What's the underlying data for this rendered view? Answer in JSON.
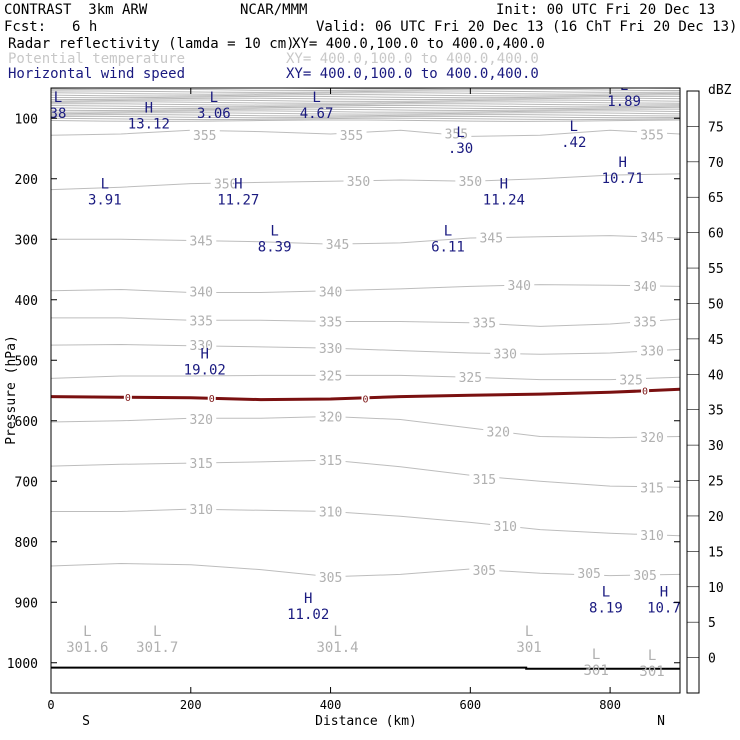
{
  "header": {
    "title_left": "CONTRAST  3km ARW",
    "title_center": "NCAR/MMM",
    "init": "Init: 00 UTC Fri 20 Dec 13",
    "fcst_label": "Fcst:",
    "fcst_value": "6 h",
    "valid": "Valid: 06 UTC Fri 20 Dec 13 (16 ChT Fri 20 Dec 13)",
    "fields": [
      {
        "name": "Radar reflectivity (lamda = 10 cm)",
        "xy": "XY= 400.0,100.0 to 400.0,400.0"
      },
      {
        "name": "Potential temperature",
        "xy": "XY= 400.0,100.0 to 400.0,400.0"
      },
      {
        "name": "Horizontal wind speed",
        "xy": "XY= 400.0,100.0 to 400.0,400.0"
      }
    ]
  },
  "axes": {
    "ylabel": "Pressure (hPa)",
    "xlabel": "Distance (km)",
    "y_ticks": [
      100,
      200,
      300,
      400,
      500,
      600,
      700,
      800,
      900,
      1000
    ],
    "x_ticks": [
      0,
      200,
      400,
      600,
      800
    ],
    "x_start_label": "S",
    "x_end_label": "N"
  },
  "colorbar": {
    "unit": "dBZ",
    "labels": [
      75,
      70,
      65,
      60,
      55,
      50,
      45,
      40,
      35,
      30,
      25,
      20,
      15,
      10,
      5,
      0
    ],
    "colors": [
      "#ffffff",
      "#c490c4",
      "#8c3c9c",
      "#a0506a",
      "#c80000",
      "#ff0000",
      "#ff6000",
      "#ff9c40",
      "#ffc832",
      "#f0e030",
      "#00a000",
      "#34e040",
      "#4090c0",
      "#2030d0",
      "#30a8f0",
      "#88f8f8",
      "#ffffff"
    ]
  },
  "chart_data": {
    "type": "contour",
    "x_range_km": [
      0,
      900
    ],
    "y_range_hpa": [
      50,
      1050
    ],
    "theta_contours": [
      {
        "label": "355",
        "points": [
          [
            0,
            128
          ],
          [
            100,
            126
          ],
          [
            200,
            120
          ],
          [
            300,
            122
          ],
          [
            400,
            126
          ],
          [
            500,
            120
          ],
          [
            600,
            130
          ],
          [
            700,
            128
          ],
          [
            800,
            120
          ],
          [
            900,
            126
          ]
        ],
        "label_pos": [
          [
            220,
            128
          ],
          [
            430,
            128
          ],
          [
            580,
            125
          ],
          [
            860,
            127
          ]
        ]
      },
      {
        "label": "350",
        "points": [
          [
            0,
            218
          ],
          [
            100,
            214
          ],
          [
            200,
            208
          ],
          [
            300,
            206
          ],
          [
            400,
            204
          ],
          [
            500,
            202
          ],
          [
            600,
            204
          ],
          [
            700,
            200
          ],
          [
            800,
            194
          ],
          [
            900,
            192
          ]
        ],
        "label_pos": [
          [
            250,
            208
          ],
          [
            440,
            204
          ],
          [
            600,
            204
          ]
        ]
      },
      {
        "label": "345",
        "points": [
          [
            0,
            300
          ],
          [
            100,
            300
          ],
          [
            200,
            302
          ],
          [
            300,
            304
          ],
          [
            400,
            308
          ],
          [
            500,
            306
          ],
          [
            600,
            298
          ],
          [
            700,
            296
          ],
          [
            800,
            294
          ],
          [
            900,
            298
          ]
        ],
        "label_pos": [
          [
            215,
            302
          ],
          [
            410,
            308
          ],
          [
            630,
            297
          ],
          [
            860,
            296
          ]
        ]
      },
      {
        "label": "340",
        "points": [
          [
            0,
            385
          ],
          [
            100,
            383
          ],
          [
            200,
            388
          ],
          [
            300,
            388
          ],
          [
            400,
            385
          ],
          [
            500,
            382
          ],
          [
            600,
            378
          ],
          [
            700,
            375
          ],
          [
            800,
            376
          ],
          [
            900,
            378
          ]
        ],
        "label_pos": [
          [
            215,
            386
          ],
          [
            400,
            386
          ],
          [
            670,
            376
          ],
          [
            850,
            377
          ]
        ]
      },
      {
        "label": "335",
        "points": [
          [
            0,
            430
          ],
          [
            100,
            430
          ],
          [
            200,
            434
          ],
          [
            300,
            434
          ],
          [
            400,
            436
          ],
          [
            500,
            436
          ],
          [
            600,
            438
          ],
          [
            700,
            444
          ],
          [
            800,
            440
          ],
          [
            900,
            432
          ]
        ],
        "label_pos": [
          [
            215,
            434
          ],
          [
            400,
            436
          ],
          [
            620,
            438
          ],
          [
            850,
            436
          ]
        ]
      },
      {
        "label": "330",
        "points": [
          [
            0,
            475
          ],
          [
            100,
            474
          ],
          [
            200,
            476
          ],
          [
            300,
            478
          ],
          [
            400,
            480
          ],
          [
            500,
            484
          ],
          [
            600,
            488
          ],
          [
            700,
            490
          ],
          [
            800,
            488
          ],
          [
            900,
            482
          ]
        ],
        "label_pos": [
          [
            215,
            475
          ],
          [
            400,
            480
          ],
          [
            650,
            489
          ],
          [
            860,
            484
          ]
        ]
      },
      {
        "label": "325",
        "points": [
          [
            0,
            530
          ],
          [
            100,
            526
          ],
          [
            200,
            526
          ],
          [
            300,
            525
          ],
          [
            400,
            525
          ],
          [
            500,
            525
          ],
          [
            600,
            528
          ],
          [
            700,
            532
          ],
          [
            800,
            532
          ],
          [
            900,
            528
          ]
        ],
        "label_pos": [
          [
            400,
            525
          ],
          [
            600,
            528
          ],
          [
            830,
            532
          ]
        ]
      },
      {
        "label": "320",
        "points": [
          [
            0,
            602
          ],
          [
            100,
            600
          ],
          [
            200,
            596
          ],
          [
            300,
            596
          ],
          [
            400,
            593
          ],
          [
            500,
            598
          ],
          [
            600,
            612
          ],
          [
            700,
            626
          ],
          [
            800,
            628
          ],
          [
            900,
            626
          ]
        ],
        "label_pos": [
          [
            215,
            597
          ],
          [
            400,
            593
          ],
          [
            640,
            618
          ],
          [
            860,
            627
          ]
        ]
      },
      {
        "label": "315",
        "points": [
          [
            0,
            675
          ],
          [
            100,
            672
          ],
          [
            200,
            670
          ],
          [
            300,
            668
          ],
          [
            400,
            665
          ],
          [
            500,
            676
          ],
          [
            600,
            690
          ],
          [
            700,
            700
          ],
          [
            800,
            708
          ],
          [
            900,
            710
          ]
        ],
        "label_pos": [
          [
            215,
            670
          ],
          [
            400,
            665
          ],
          [
            620,
            696
          ],
          [
            860,
            710
          ]
        ]
      },
      {
        "label": "310",
        "points": [
          [
            0,
            750
          ],
          [
            100,
            750
          ],
          [
            200,
            746
          ],
          [
            300,
            748
          ],
          [
            400,
            750
          ],
          [
            500,
            758
          ],
          [
            600,
            768
          ],
          [
            700,
            780
          ],
          [
            800,
            786
          ],
          [
            900,
            790
          ]
        ],
        "label_pos": [
          [
            215,
            746
          ],
          [
            400,
            750
          ],
          [
            650,
            774
          ],
          [
            860,
            789
          ]
        ]
      },
      {
        "label": "305",
        "points": [
          [
            0,
            840
          ],
          [
            100,
            836
          ],
          [
            200,
            838
          ],
          [
            300,
            846
          ],
          [
            400,
            858
          ],
          [
            500,
            854
          ],
          [
            600,
            845
          ],
          [
            700,
            852
          ],
          [
            800,
            856
          ],
          [
            900,
            854
          ]
        ],
        "label_pos": [
          [
            400,
            858
          ],
          [
            620,
            847
          ],
          [
            770,
            852
          ],
          [
            850,
            855
          ]
        ]
      }
    ],
    "zero_line": {
      "label": "0",
      "points": [
        [
          0,
          560
        ],
        [
          100,
          561
        ],
        [
          200,
          562
        ],
        [
          300,
          565
        ],
        [
          400,
          564
        ],
        [
          500,
          560
        ],
        [
          600,
          558
        ],
        [
          700,
          556
        ],
        [
          800,
          553
        ],
        [
          900,
          548
        ]
      ],
      "label_pos": [
        [
          110,
          561
        ],
        [
          230,
          562
        ],
        [
          450,
          563
        ],
        [
          850,
          550
        ]
      ]
    },
    "surface_line": [
      [
        0,
        1008
      ],
      [
        680,
        1008
      ],
      [
        680,
        1010
      ],
      [
        900,
        1010
      ]
    ],
    "top_band_hpa": [
      50,
      105
    ],
    "wind_extrema": [
      {
        "type": "L",
        "x": 10,
        "p": 80,
        "value": "38"
      },
      {
        "type": "H",
        "x": 140,
        "p": 97,
        "value": "13.12"
      },
      {
        "type": "L",
        "x": 233,
        "p": 80,
        "value": "3.06"
      },
      {
        "type": "L",
        "x": 380,
        "p": 80,
        "value": "4.67"
      },
      {
        "type": "L",
        "x": 820,
        "p": 60,
        "value": "1.89"
      },
      {
        "type": "L",
        "x": 586,
        "p": 138,
        "value": ".30"
      },
      {
        "type": "L",
        "x": 748,
        "p": 128,
        "value": ".42"
      },
      {
        "type": "L",
        "x": 77,
        "p": 223,
        "value": "3.91"
      },
      {
        "type": "H",
        "x": 268,
        "p": 223,
        "value": "11.27"
      },
      {
        "type": "H",
        "x": 648,
        "p": 223,
        "value": "11.24"
      },
      {
        "type": "H",
        "x": 818,
        "p": 187,
        "value": "10.71"
      },
      {
        "type": "L",
        "x": 320,
        "p": 300,
        "value": "8.39"
      },
      {
        "type": "L",
        "x": 568,
        "p": 300,
        "value": "6.11"
      },
      {
        "type": "H",
        "x": 220,
        "p": 504,
        "value": "19.02"
      },
      {
        "type": "H",
        "x": 368,
        "p": 908,
        "value": "11.02"
      },
      {
        "type": "L",
        "x": 794,
        "p": 897,
        "value": "8.19"
      },
      {
        "type": "H",
        "x": 877,
        "p": 897,
        "value": "10.7"
      }
    ],
    "theta_extrema": [
      {
        "type": "L",
        "x": 52,
        "p": 962,
        "value": "301.6"
      },
      {
        "type": "L",
        "x": 152,
        "p": 962,
        "value": "301.7"
      },
      {
        "type": "L",
        "x": 410,
        "p": 962,
        "value": "301.4"
      },
      {
        "type": "L",
        "x": 684,
        "p": 962,
        "value": "301"
      },
      {
        "type": "L",
        "x": 780,
        "p": 1000,
        "value": "301"
      },
      {
        "type": "L",
        "x": 860,
        "p": 1002,
        "value": "301"
      }
    ]
  }
}
